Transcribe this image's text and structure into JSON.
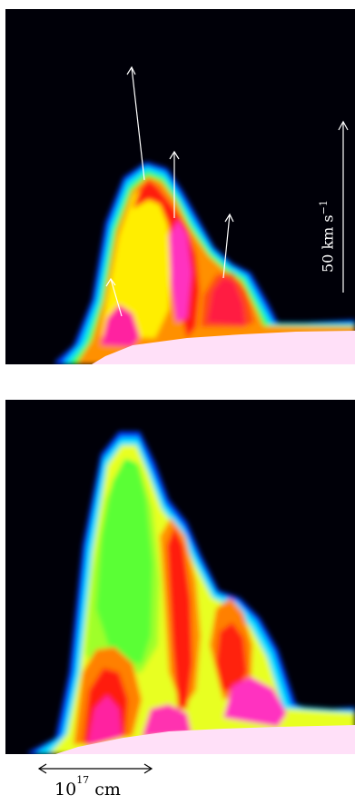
{
  "panels": [
    {
      "id": "top",
      "has_velocity_arrows": true
    },
    {
      "id": "bottom",
      "has_velocity_arrows": false
    }
  ],
  "velocity_scale": {
    "label": "50 km s",
    "exponent": "−1"
  },
  "length_scale": {
    "base": "10",
    "exponent": "17",
    "unit": "cm"
  },
  "colors": {
    "background": "#000008",
    "floor": "#ffe0f8",
    "arrow": "#ffffff"
  }
}
